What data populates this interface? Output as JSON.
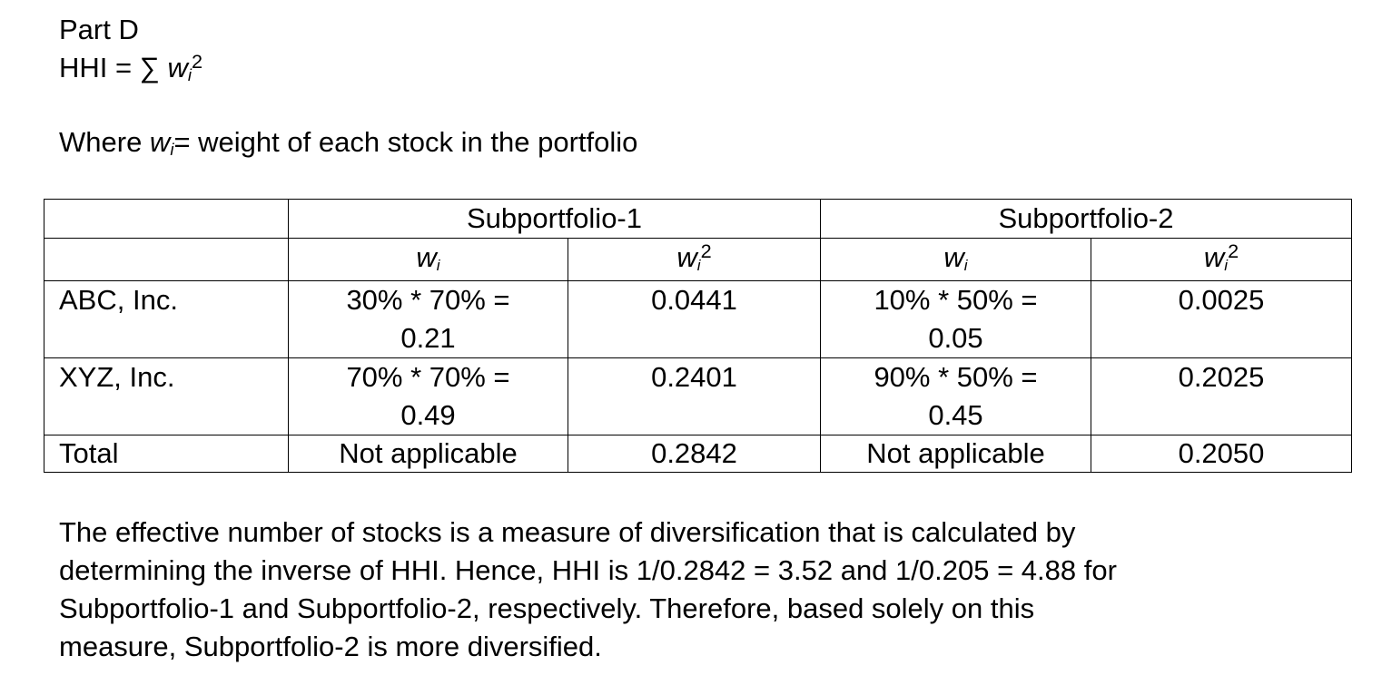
{
  "heading": "Part D",
  "formula": {
    "lhs": "HHI = ∑ ",
    "var": "w",
    "sub": "i",
    "sup": "2"
  },
  "definition": {
    "prefix": "Where ",
    "var": "w",
    "sub": "i",
    "suffix": "= weight of each stock in the portfolio"
  },
  "table": {
    "groups": [
      "Subportfolio-1",
      "Subportfolio-2"
    ],
    "subheaders": [
      {
        "var": "w",
        "sub": "i"
      },
      {
        "var": "w",
        "sub": "i",
        "sup": "2"
      },
      {
        "var": "w",
        "sub": "i"
      },
      {
        "var": "w",
        "sub": "i",
        "sup": "2"
      }
    ],
    "rows": [
      [
        [
          "ABC, Inc."
        ],
        [
          "30% * 70% =",
          "0.21"
        ],
        [
          "0.0441"
        ],
        [
          "10% * 50% =",
          "0.05"
        ],
        [
          "0.0025"
        ]
      ],
      [
        [
          "XYZ, Inc."
        ],
        [
          "70% * 70% =",
          "0.49"
        ],
        [
          "0.2401"
        ],
        [
          "90% * 50% =",
          "0.45"
        ],
        [
          "0.2025"
        ]
      ],
      [
        [
          "Total"
        ],
        [
          "Not applicable"
        ],
        [
          "0.2842"
        ],
        [
          "Not applicable"
        ],
        [
          "0.2050"
        ]
      ]
    ]
  },
  "conclusion": [
    "The effective number of stocks is a measure of diversification that is calculated by",
    "determining the inverse of HHI. Hence, HHI is 1/0.2842 = 3.52 and 1/0.205 = 4.88 for",
    "Subportfolio-1 and Subportfolio-2, respectively. Therefore, based solely on this",
    "measure, Subportfolio-2 is more diversified."
  ]
}
